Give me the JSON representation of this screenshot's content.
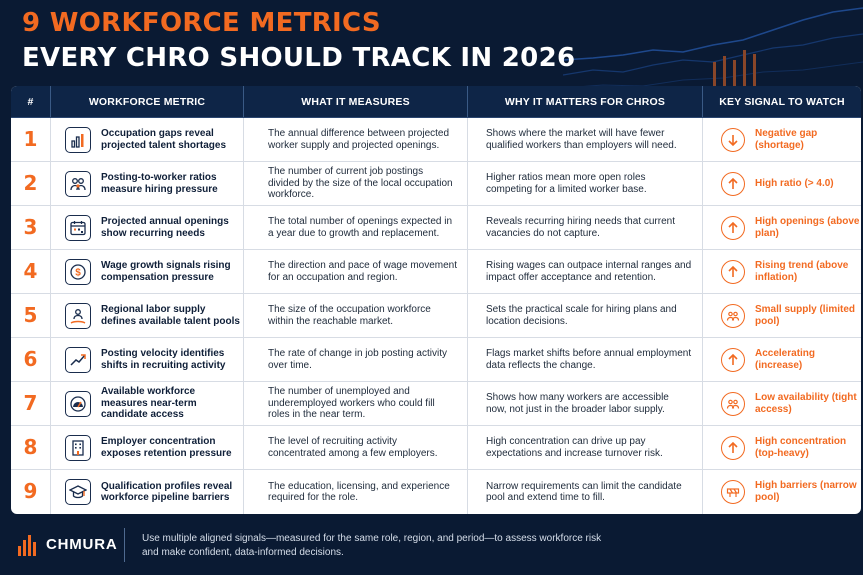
{
  "title": {
    "line1": "9 WORKFORCE METRICS",
    "line2": "EVERY CHRO SHOULD TRACK IN 2026"
  },
  "colors": {
    "accent": "#f26a21",
    "background": "#0a1a33",
    "header": "#0e2547"
  },
  "headers": [
    "#",
    "WORKFORCE METRIC",
    "WHAT IT MEASURES",
    "WHY IT MATTERS FOR CHROS",
    "KEY SIGNAL TO WATCH"
  ],
  "rows": [
    {
      "num": "1",
      "icon": "bar-chart-icon",
      "metric": "Occupation gaps reveal projected talent shortages",
      "measures": "The annual difference between projected worker supply and projected openings.",
      "matters": "Shows where the market will have fewer qualified workers than employers will need.",
      "signal_icon": "arrow-down-icon",
      "signal": "Negative gap (shortage)"
    },
    {
      "num": "2",
      "icon": "people-group-icon",
      "metric": "Posting-to-worker ratios measure hiring pressure",
      "measures": "The number of current job postings divided by the size of the local occupation workforce.",
      "matters": "Higher ratios mean more open roles competing for a limited worker base.",
      "signal_icon": "arrow-up-icon",
      "signal": "High ratio (> 4.0)"
    },
    {
      "num": "3",
      "icon": "calendar-icon",
      "metric": "Projected annual openings show recurring needs",
      "measures": "The total number of openings expected in a year due to growth and replacement.",
      "matters": "Reveals recurring hiring needs that current vacancies do not capture.",
      "signal_icon": "arrow-up-icon",
      "signal": "High openings (above plan)"
    },
    {
      "num": "4",
      "icon": "dollar-coin-icon",
      "metric": "Wage growth signals rising compensation pressure",
      "measures": "The direction and pace of wage movement for an occupation and region.",
      "matters": "Rising wages can outpace internal ranges and impact offer acceptance and retention.",
      "signal_icon": "arrow-up-icon",
      "signal": "Rising trend (above inflation)"
    },
    {
      "num": "5",
      "icon": "people-pool-icon",
      "metric": "Regional labor supply defines available talent pools",
      "measures": "The size of the occupation workforce within the reachable market.",
      "matters": "Sets the practical scale for hiring plans and location decisions.",
      "signal_icon": "people-icon",
      "signal": "Small supply (limited pool)"
    },
    {
      "num": "6",
      "icon": "trend-line-icon",
      "metric": "Posting velocity identifies shifts in recruiting activity",
      "measures": "The rate of change in job posting activity over time.",
      "matters": "Flags market shifts before annual employment data reflects the change.",
      "signal_icon": "arrow-up-icon",
      "signal": "Accelerating (increase)"
    },
    {
      "num": "7",
      "icon": "gauge-icon",
      "metric": "Available workforce measures near-term candidate access",
      "measures": "The number of unemployed and underemployed workers who could fill roles in the near term.",
      "matters": "Shows how many workers are accessible now, not just in the broader labor supply.",
      "signal_icon": "people-icon",
      "signal": "Low availability (tight access)"
    },
    {
      "num": "8",
      "icon": "building-icon",
      "metric": "Employer concentration exposes retention pressure",
      "measures": "The level of recruiting activity concentrated among a few employers.",
      "matters": "High concentration can drive up pay expectations and increase turnover risk.",
      "signal_icon": "arrow-up-icon",
      "signal": "High concentration (top-heavy)"
    },
    {
      "num": "9",
      "icon": "graduation-cap-icon",
      "metric": "Qualification profiles reveal workforce pipeline barriers",
      "measures": "The education, licensing, and experience required for the role.",
      "matters": "Narrow requirements can limit the candidate pool and extend time to fill.",
      "signal_icon": "barrier-icon",
      "signal": "High barriers (narrow pool)"
    }
  ],
  "footer": {
    "brand": "CHMURA",
    "note": "Use multiple aligned signals—measured for the same role, region, and period—to assess workforce risk and make confident, data-informed decisions."
  }
}
